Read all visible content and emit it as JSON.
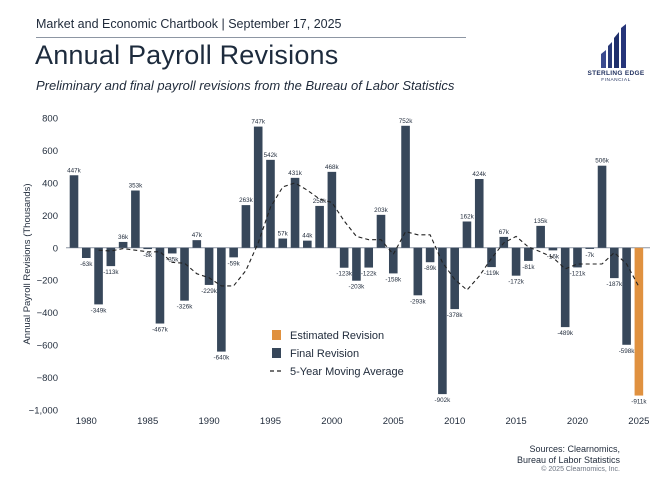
{
  "header": {
    "report_line": "Market and Economic Chartbook | September 17, 2025",
    "title": "Annual Payroll Revisions",
    "subtitle": "Preliminary and final payroll revisions from the Bureau of Labor Statistics"
  },
  "logo": {
    "icon": "building-bars-logo",
    "name": "STERLING EDGE",
    "sub": "FINANCIAL"
  },
  "footer": {
    "source_line1": "Sources: Clearnomics,",
    "source_line2": "Bureau of Labor Statistics",
    "copyright": "© 2025 Clearnomics, Inc."
  },
  "colors": {
    "final": "#37475a",
    "estimated": "#e0913f",
    "moving_average": "#222222",
    "axis": "#8d96a3"
  },
  "chart_data": {
    "type": "bar",
    "ylabel": "Annual Payroll Revisions (Thousands)",
    "xlabel": "",
    "ylim": [
      -1000,
      800
    ],
    "yticks": [
      -1000,
      -800,
      -600,
      -400,
      -200,
      0,
      200,
      400,
      600,
      800
    ],
    "xticks": [
      1980,
      1985,
      1990,
      1995,
      2000,
      2005,
      2010,
      2015,
      2020,
      2025
    ],
    "grid": false,
    "legend_position": "bottom-center",
    "x": [
      1979,
      1980,
      1981,
      1982,
      1983,
      1984,
      1985,
      1986,
      1987,
      1988,
      1989,
      1990,
      1991,
      1992,
      1993,
      1994,
      1995,
      1996,
      1997,
      1998,
      1999,
      2000,
      2001,
      2002,
      2003,
      2004,
      2005,
      2006,
      2007,
      2008,
      2009,
      2010,
      2011,
      2012,
      2013,
      2014,
      2015,
      2016,
      2017,
      2018,
      2019,
      2020,
      2021,
      2022,
      2023,
      2024,
      2025
    ],
    "series": [
      {
        "name": "Final Revision",
        "values": [
          447,
          -63,
          -349,
          -113,
          36,
          353,
          -8,
          -467,
          -35,
          -326,
          47,
          -229,
          -640,
          -59,
          263,
          747,
          542,
          57,
          431,
          44,
          258,
          468,
          -123,
          -203,
          -122,
          203,
          -158,
          752,
          -293,
          -89,
          -902,
          -378,
          162,
          424,
          -119,
          67,
          -172,
          -81,
          135,
          -16,
          -489,
          -121,
          -7,
          506,
          -187,
          -598,
          null
        ],
        "labels": [
          "447k",
          "-63k",
          "-349k",
          "-113k",
          "36k",
          "353k",
          "-8k",
          "-467k",
          "-35k",
          "-326k",
          "47k",
          "-229k",
          "-640k",
          "-59k",
          "263k",
          "747k",
          "542k",
          "57k",
          "431k",
          "44k",
          "258k",
          "468k",
          "-123k",
          "-203k",
          "-122k",
          "203k",
          "-158k",
          "752k",
          "-293k",
          "-89k",
          "-902k",
          "-378k",
          "162k",
          "424k",
          "-119k",
          "67k",
          "-172k",
          "-81k",
          "135k",
          "-16k",
          "-489k",
          "-121k",
          "-7k",
          "506k",
          "-187k",
          "-598k",
          ""
        ]
      },
      {
        "name": "Estimated Revision",
        "values": [
          null,
          null,
          null,
          null,
          null,
          null,
          null,
          null,
          null,
          null,
          null,
          null,
          null,
          null,
          null,
          null,
          null,
          null,
          null,
          null,
          null,
          null,
          null,
          null,
          null,
          null,
          null,
          null,
          null,
          null,
          null,
          null,
          null,
          null,
          null,
          null,
          null,
          null,
          null,
          null,
          null,
          null,
          null,
          null,
          null,
          null,
          -911
        ],
        "labels": [
          "",
          "",
          "",
          "",
          "",
          "",
          "",
          "",
          "",
          "",
          "",
          "",
          "",
          "",
          "",
          "",
          "",
          "",
          "",
          "",
          "",
          "",
          "",
          "",
          "",
          "",
          "",
          "",
          "",
          "",
          "",
          "",
          "",
          "",
          "",
          "",
          "",
          "",
          "",
          "",
          "",
          "",
          "",
          "",
          "",
          "",
          "-911k"
        ]
      },
      {
        "name": "5-Year Moving Average",
        "type": "line",
        "x": [
          1981,
          1982,
          1983,
          1984,
          1985,
          1986,
          1987,
          1988,
          1989,
          1990,
          1991,
          1992,
          1993,
          1994,
          1995,
          1996,
          1997,
          1998,
          1999,
          2000,
          2001,
          2002,
          2003,
          2004,
          2005,
          2006,
          2007,
          2008,
          2009,
          2010,
          2011,
          2012,
          2013,
          2014,
          2015,
          2016,
          2017,
          2018,
          2019,
          2020,
          2021,
          2022,
          2023,
          2024,
          2025
        ],
        "values": [
          -15,
          -20,
          -5,
          -15,
          -25,
          -25,
          -90,
          -95,
          -160,
          -185,
          -235,
          -235,
          -140,
          30,
          250,
          375,
          400,
          355,
          300,
          280,
          165,
          70,
          50,
          50,
          -40,
          100,
          80,
          80,
          -90,
          -195,
          -260,
          -175,
          -65,
          30,
          70,
          5,
          -25,
          -60,
          -130,
          -100,
          -100,
          -100,
          -30,
          -100,
          -240
        ]
      }
    ]
  }
}
